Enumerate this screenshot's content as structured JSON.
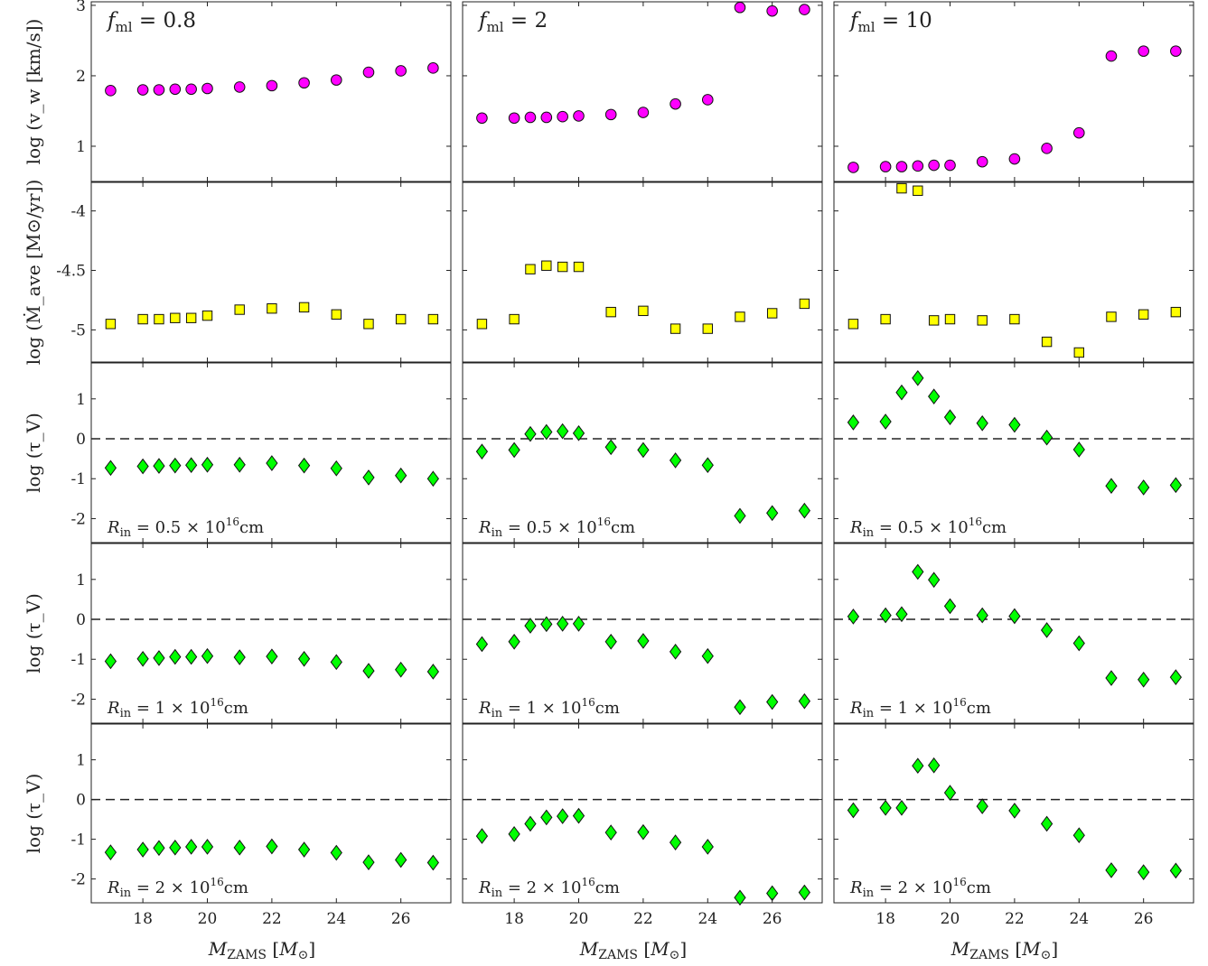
{
  "chart_data": {
    "type": "scatter",
    "x": [
      17,
      18,
      18.5,
      19,
      19.5,
      20,
      21,
      22,
      23,
      24,
      25,
      26,
      27
    ],
    "xlim": [
      16.4,
      27.55
    ],
    "xticks": [
      18,
      20,
      22,
      24,
      26
    ],
    "xlabel": {
      "main": "M",
      "sub": "ZAMS",
      "unit_open": "[M",
      "unit_sub": "⊙",
      "unit_close": "]"
    },
    "columns": [
      {
        "label_main": "f",
        "label_sub": "ml",
        "label_rest": " = 0.8"
      },
      {
        "label_main": "f",
        "label_sub": "ml",
        "label_rest": " = 2"
      },
      {
        "label_main": "f",
        "label_sub": "ml",
        "label_rest": " = 10"
      }
    ],
    "rows": [
      {
        "quantity": "vw",
        "ylabel": "log (v_w [km/s])",
        "ylim": [
          0.5,
          3.05
        ],
        "yticks": [
          1,
          2,
          3
        ],
        "ytick_labels": [
          "1",
          "2",
          "3"
        ],
        "marker": "circle",
        "color": "#ff00ff",
        "zero_line": false,
        "series": [
          {
            "values": [
              1.79,
              1.8,
              1.8,
              1.81,
              1.81,
              1.82,
              1.84,
              1.86,
              1.9,
              1.94,
              2.05,
              2.07,
              2.11
            ]
          },
          {
            "values": [
              1.4,
              1.4,
              1.41,
              1.41,
              1.42,
              1.43,
              1.45,
              1.48,
              1.6,
              1.66,
              2.97,
              2.92,
              2.94
            ]
          },
          {
            "values": [
              0.7,
              0.71,
              0.71,
              0.72,
              0.73,
              0.73,
              0.78,
              0.82,
              0.97,
              1.19,
              2.28,
              2.35,
              2.35
            ]
          }
        ]
      },
      {
        "quantity": "mdot",
        "ylabel": "log (Ṁ_ave [M⊙/yr])",
        "ylim": [
          -5.27,
          -3.76
        ],
        "yticks": [
          -4,
          -4.5,
          -5
        ],
        "ytick_labels": [
          "-4",
          "-4.5",
          "-5"
        ],
        "marker": "square",
        "color": "#ffff00",
        "zero_line": false,
        "series": [
          {
            "values": [
              -4.95,
              -4.91,
              -4.91,
              -4.9,
              -4.9,
              -4.88,
              -4.83,
              -4.82,
              -4.81,
              -4.87,
              -4.95,
              -4.91,
              -4.91
            ]
          },
          {
            "values": [
              -4.95,
              -4.91,
              -4.49,
              -4.46,
              -4.47,
              -4.47,
              -4.85,
              -4.84,
              -4.99,
              -4.99,
              -4.89,
              -4.86,
              -4.78
            ]
          },
          {
            "values": [
              -4.95,
              -4.91,
              -3.81,
              -3.83,
              -4.92,
              -4.91,
              -4.92,
              -4.91,
              -5.1,
              -5.19,
              -4.89,
              -4.87,
              -4.85
            ]
          }
        ]
      },
      {
        "quantity": "tau1",
        "ylabel": "log (τ_V)",
        "annotation_main": "R",
        "annotation_sub": "in",
        "annotation_rest": " = 0.5 × 10",
        "annotation_exp": "16",
        "annotation_unit": "cm",
        "ylim": [
          -2.6,
          1.9
        ],
        "yticks": [
          1,
          0,
          -1,
          -2
        ],
        "ytick_labels": [
          "1",
          "0",
          "-1",
          "-2"
        ],
        "marker": "diamond",
        "color": "#00ff00",
        "zero_line": true,
        "series": [
          {
            "values": [
              -0.73,
              -0.69,
              -0.68,
              -0.67,
              -0.66,
              -0.65,
              -0.65,
              -0.61,
              -0.67,
              -0.74,
              -0.97,
              -0.92,
              -1.0
            ]
          },
          {
            "values": [
              -0.32,
              -0.28,
              0.12,
              0.17,
              0.19,
              0.14,
              -0.21,
              -0.28,
              -0.54,
              -0.66,
              -1.93,
              -1.86,
              -1.8
            ]
          },
          {
            "values": [
              0.41,
              0.43,
              1.16,
              1.52,
              1.06,
              0.54,
              0.39,
              0.35,
              0.03,
              -0.27,
              -1.18,
              -1.22,
              -1.16
            ]
          }
        ]
      },
      {
        "quantity": "tau2",
        "ylabel": "log (τ_V)",
        "annotation_main": "R",
        "annotation_sub": "in",
        "annotation_rest": " = 1 × 10",
        "annotation_exp": "16",
        "annotation_unit": "cm",
        "ylim": [
          -2.6,
          1.9
        ],
        "yticks": [
          1,
          0,
          -1,
          -2
        ],
        "ytick_labels": [
          "1",
          "0",
          "-1",
          "-2"
        ],
        "marker": "diamond",
        "color": "#00ff00",
        "zero_line": true,
        "series": [
          {
            "values": [
              -1.05,
              -0.99,
              -0.97,
              -0.94,
              -0.94,
              -0.92,
              -0.95,
              -0.93,
              -0.99,
              -1.07,
              -1.29,
              -1.26,
              -1.31
            ]
          },
          {
            "values": [
              -0.62,
              -0.56,
              -0.16,
              -0.12,
              -0.11,
              -0.11,
              -0.56,
              -0.54,
              -0.81,
              -0.92,
              -2.2,
              -2.07,
              -2.05
            ]
          },
          {
            "values": [
              0.07,
              0.1,
              0.13,
              1.19,
              0.99,
              0.33,
              0.1,
              0.08,
              -0.27,
              -0.6,
              -1.47,
              -1.51,
              -1.45
            ]
          }
        ]
      },
      {
        "quantity": "tau3",
        "ylabel": "log (τ_V)",
        "annotation_main": "R",
        "annotation_sub": "in",
        "annotation_rest": " = 2 × 10",
        "annotation_exp": "16",
        "annotation_unit": "cm",
        "ylim": [
          -2.6,
          1.9
        ],
        "yticks": [
          1,
          0,
          -1,
          -2
        ],
        "ytick_labels": [
          "1",
          "0",
          "-1",
          "-2"
        ],
        "marker": "diamond",
        "color": "#00ff00",
        "zero_line": true,
        "series": [
          {
            "values": [
              -1.33,
              -1.26,
              -1.22,
              -1.21,
              -1.19,
              -1.19,
              -1.21,
              -1.18,
              -1.26,
              -1.34,
              -1.58,
              -1.52,
              -1.59
            ]
          },
          {
            "values": [
              -0.92,
              -0.87,
              -0.61,
              -0.45,
              -0.42,
              -0.41,
              -0.83,
              -0.82,
              -1.08,
              -1.19,
              -2.47,
              -2.36,
              -2.34
            ]
          },
          {
            "values": [
              -0.27,
              -0.21,
              -0.21,
              0.85,
              0.86,
              0.17,
              -0.17,
              -0.28,
              -0.61,
              -0.9,
              -1.78,
              -1.83,
              -1.79
            ]
          }
        ]
      }
    ]
  }
}
